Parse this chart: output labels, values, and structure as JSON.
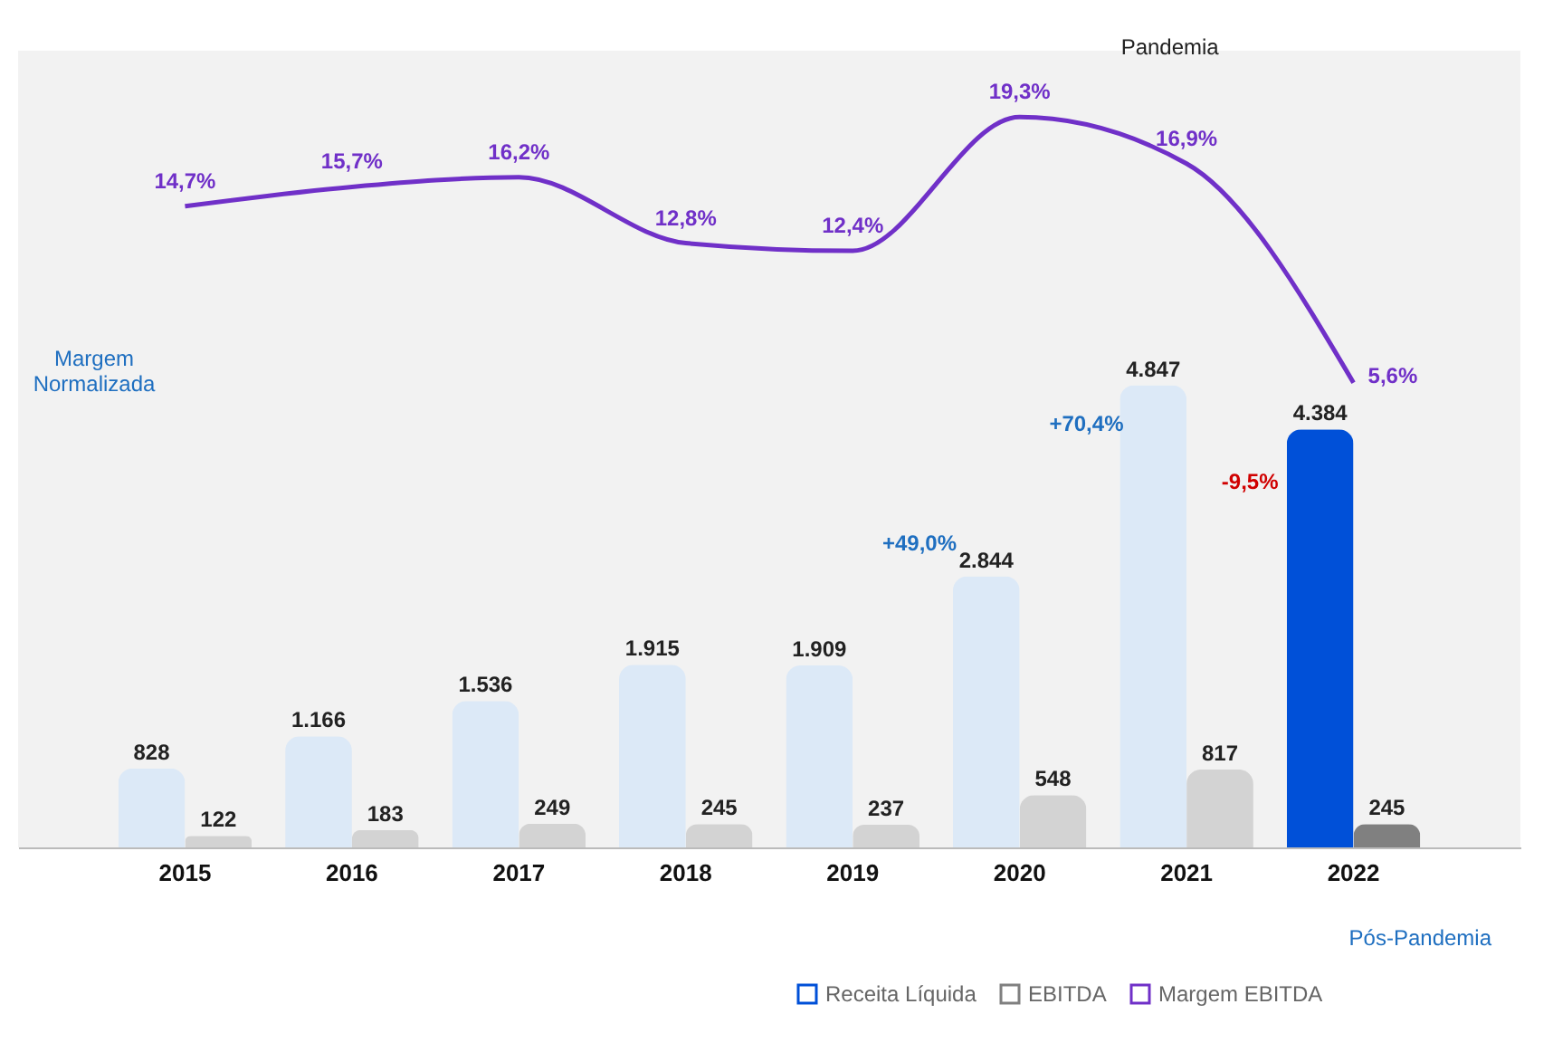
{
  "chart_data": {
    "type": "bar",
    "categories": [
      "2015",
      "2016",
      "2017",
      "2018",
      "2019",
      "2020",
      "2021",
      "2022"
    ],
    "series": [
      {
        "name": "Receita Líquida",
        "color": "#0050d8",
        "colors": [
          "#dce9f7",
          "#dce9f7",
          "#dce9f7",
          "#dce9f7",
          "#dce9f7",
          "#dce9f7",
          "#dce9f7",
          "#0050d8"
        ],
        "values": [
          828,
          1166,
          1536,
          1915,
          1909,
          2844,
          4847,
          4384
        ],
        "value_labels": [
          "828",
          "1.166",
          "1.536",
          "1.915",
          "1.909",
          "2.844",
          "4.847",
          "4.384"
        ]
      },
      {
        "name": "EBITDA",
        "color": "#808080",
        "colors": [
          "#d3d3d3",
          "#d3d3d3",
          "#d3d3d3",
          "#d3d3d3",
          "#d3d3d3",
          "#d3d3d3",
          "#d3d3d3",
          "#808080"
        ],
        "values": [
          122,
          183,
          249,
          245,
          237,
          548,
          817,
          245
        ],
        "value_labels": [
          "122",
          "183",
          "249",
          "245",
          "237",
          "548",
          "817",
          "245"
        ]
      },
      {
        "name": "Margem EBITDA",
        "type": "line",
        "axis": "y2",
        "color": "#7030c8",
        "values": [
          14.7,
          15.7,
          16.2,
          12.8,
          12.4,
          19.3,
          16.9,
          5.6
        ],
        "value_labels": [
          "14,7%",
          "15,7%",
          "16,2%",
          "12,8%",
          "12,4%",
          "19,3%",
          "16,9%",
          "5,6%"
        ]
      }
    ],
    "annotations": [
      "+49,0%",
      "+70,4%",
      "-9,5%",
      "Pandemia",
      "Pós-Pandemia",
      "Margem Normalizada"
    ],
    "legend": "bottom right",
    "grid": false
  }
}
